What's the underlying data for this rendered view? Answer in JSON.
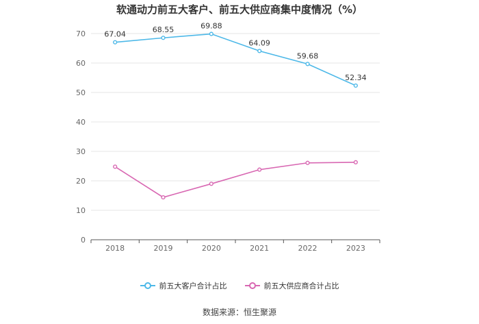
{
  "chart_data": {
    "type": "line",
    "title": "软通动力前五大客户、前五大供应商集中度情况（%）",
    "categories": [
      "2018",
      "2019",
      "2020",
      "2021",
      "2022",
      "2023"
    ],
    "ylim": [
      0,
      70
    ],
    "yticks": [
      "0",
      "10",
      "20",
      "30",
      "40",
      "50",
      "60",
      "70"
    ],
    "grid": true,
    "legend_position": "bottom",
    "series": [
      {
        "name": "前五大客户合计占比",
        "color": "#4cb8e8",
        "values": [
          67.04,
          68.55,
          69.88,
          64.09,
          59.68,
          52.34
        ],
        "labels": [
          "67.04",
          "68.55",
          "69.88",
          "64.09",
          "59.68",
          "52.34"
        ]
      },
      {
        "name": "前五大供应商合计占比",
        "color": "#d867b2",
        "values": [
          24.8,
          14.4,
          19.0,
          23.8,
          26.1,
          26.3
        ]
      }
    ]
  },
  "source": "数据来源：恒生聚源"
}
